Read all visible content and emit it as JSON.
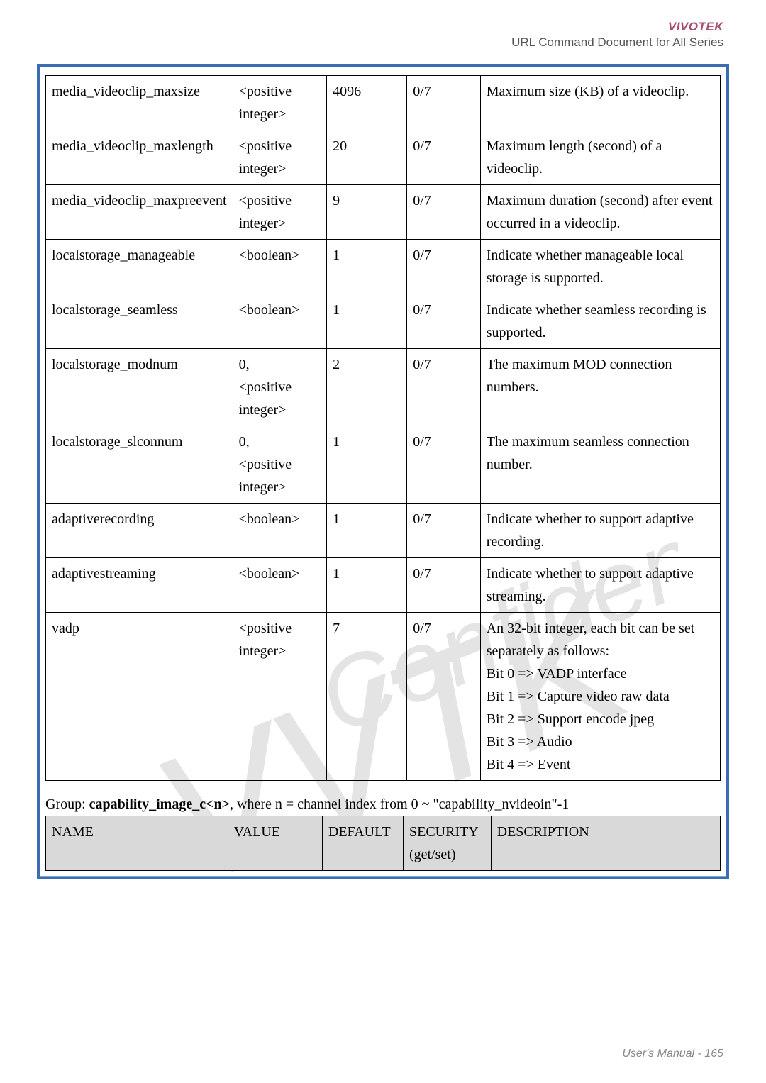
{
  "header": {
    "brand": "VIVOTEK",
    "subtitle": "URL Command Document for All Series"
  },
  "table1": {
    "rows": [
      {
        "name": "media_videoclip_maxsize",
        "value": "<positive integer>",
        "default": "4096",
        "security": "0/7",
        "description": "Maximum size (KB) of a videoclip."
      },
      {
        "name": "media_videoclip_maxlength",
        "value": "<positive integer>",
        "default": "20",
        "security": "0/7",
        "description": "Maximum length (second) of a videoclip."
      },
      {
        "name": "media_videoclip_maxpreevent",
        "value": "<positive integer>",
        "default": "9",
        "security": "0/7",
        "description": "Maximum duration (second) after event occurred in a videoclip."
      },
      {
        "name": "localstorage_manageable",
        "value": "<boolean>",
        "default": "1",
        "security": "0/7",
        "description": "Indicate whether manageable local storage is supported."
      },
      {
        "name": "localstorage_seamless",
        "value": "<boolean>",
        "default": "1",
        "security": "0/7",
        "description": "Indicate whether seamless recording is supported."
      },
      {
        "name": "localstorage_modnum",
        "value": "0,\n<positive integer>",
        "default": "2",
        "security": "0/7",
        "description": "The maximum MOD connection numbers."
      },
      {
        "name": "localstorage_slconnum",
        "value": "0,\n<positive integer>",
        "default": "1",
        "security": "0/7",
        "description": "The maximum seamless connection number."
      },
      {
        "name": "adaptiverecording",
        "value": "<boolean>",
        "default": "1",
        "security": "0/7",
        "description": "Indicate whether to support adaptive recording."
      },
      {
        "name": "adaptivestreaming",
        "value": "<boolean>",
        "default": "1",
        "security": "0/7",
        "description": "Indicate whether to support adaptive streaming."
      },
      {
        "name": "vadp",
        "value": "<positive integer>",
        "default": "7",
        "security": "0/7",
        "description": "An 32-bit integer, each bit can be set separately as follows:\nBit 0 => VADP interface\nBit 1 => Capture video raw data\nBit 2 => Support encode jpeg\nBit 3 => Audio\nBit 4 => Event"
      }
    ]
  },
  "group_label_prefix": "Group: ",
  "group_label_bold": "capability_image_c<n>",
  "group_label_suffix": ", where n = channel index from 0 ~ \"capability_nvideoin\"-1",
  "table2": {
    "headers": {
      "name": "NAME",
      "value": "VALUE",
      "default": "DEFAULT",
      "security": "SECURITY\n(get/set)",
      "description": "DESCRIPTION"
    }
  },
  "footer": "User's Manual - 165"
}
